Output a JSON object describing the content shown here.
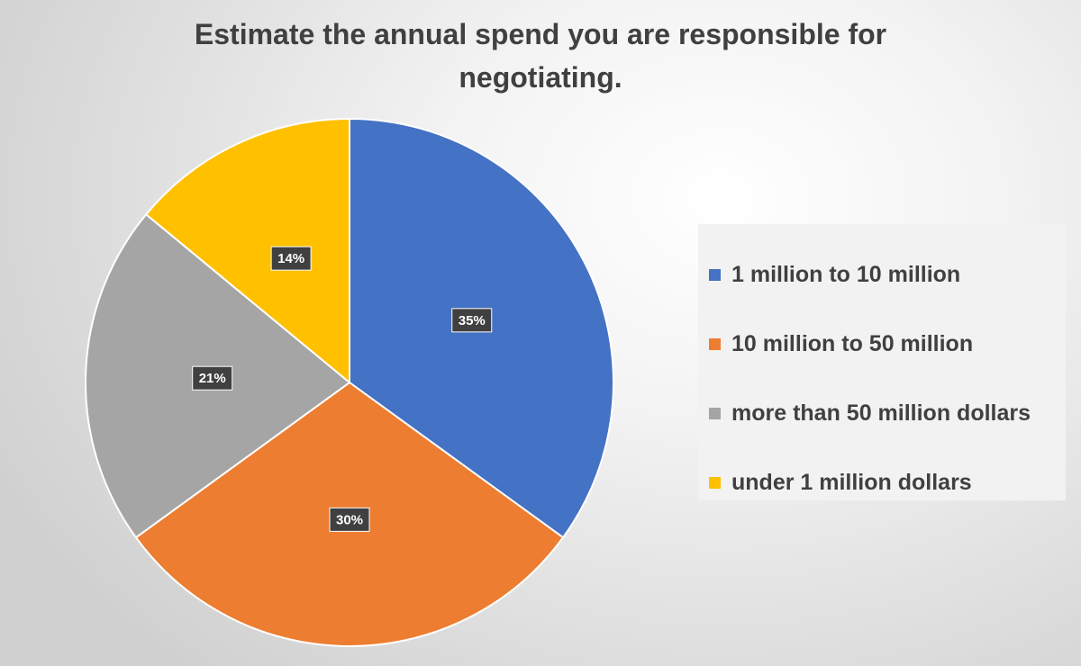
{
  "chart_data": {
    "type": "pie",
    "title": "Estimate the annual spend you are responsible for negotiating.",
    "categories": [
      "1 million to 10 million",
      "10 million to 50 million",
      "more than 50 million dollars",
      "under 1 million dollars"
    ],
    "values": [
      35,
      30,
      21,
      14
    ],
    "data_labels": [
      "35%",
      "30%",
      "21%",
      "14%"
    ],
    "colors": [
      "#4472C4",
      "#ED7D31",
      "#A5A5A5",
      "#FFC000"
    ],
    "start_angle_deg": 0,
    "direction": "clockwise",
    "legend_position": "right"
  }
}
